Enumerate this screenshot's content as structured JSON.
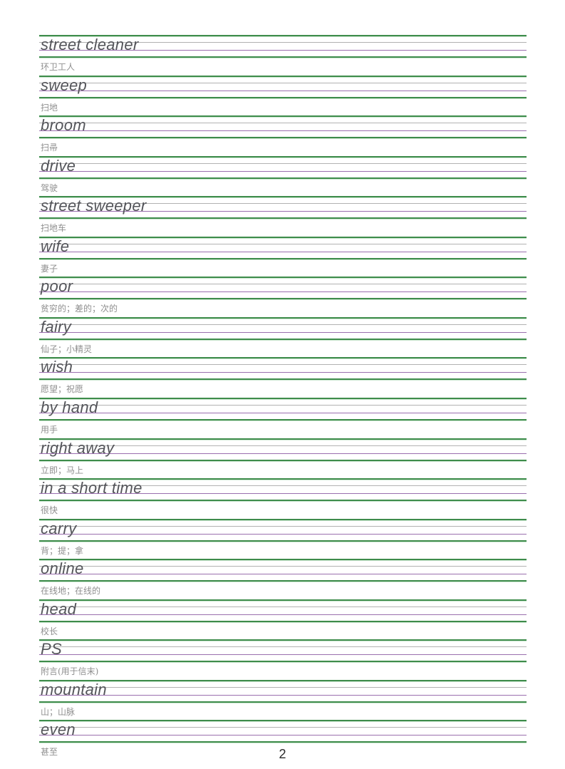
{
  "page": {
    "number": "2"
  },
  "colors": {
    "guide_line_green": "#3e8c4b",
    "guide_line_gray": "#b2b2b2",
    "guide_line_purple": "#9a6fae",
    "english_word_text": "#54555a",
    "chinese_text": "#8f8f8f"
  },
  "entries": [
    {
      "en": "street cleaner",
      "zh": "环卫工人"
    },
    {
      "en": "sweep",
      "zh": "扫地"
    },
    {
      "en": "broom",
      "zh": "扫帚"
    },
    {
      "en": "drive",
      "zh": "驾驶"
    },
    {
      "en": "street sweeper",
      "zh": "扫地车"
    },
    {
      "en": "wife",
      "zh": "妻子"
    },
    {
      "en": "poor",
      "zh": "贫穷的；差的；次的"
    },
    {
      "en": "fairy",
      "zh": "仙子；小精灵"
    },
    {
      "en": "wish",
      "zh": "愿望；祝愿"
    },
    {
      "en": "by hand",
      "zh": "用手"
    },
    {
      "en": "right away",
      "zh": "立即；马上"
    },
    {
      "en": "in a short time",
      "zh": "很快"
    },
    {
      "en": "carry",
      "zh": "背；提；拿"
    },
    {
      "en": "online",
      "zh": "在线地；在线的"
    },
    {
      "en": "head",
      "zh": "校长"
    },
    {
      "en": "PS",
      "zh": "附言(用于信末)"
    },
    {
      "en": "mountain",
      "zh": "山；山脉"
    },
    {
      "en": "even",
      "zh": "甚至"
    }
  ]
}
